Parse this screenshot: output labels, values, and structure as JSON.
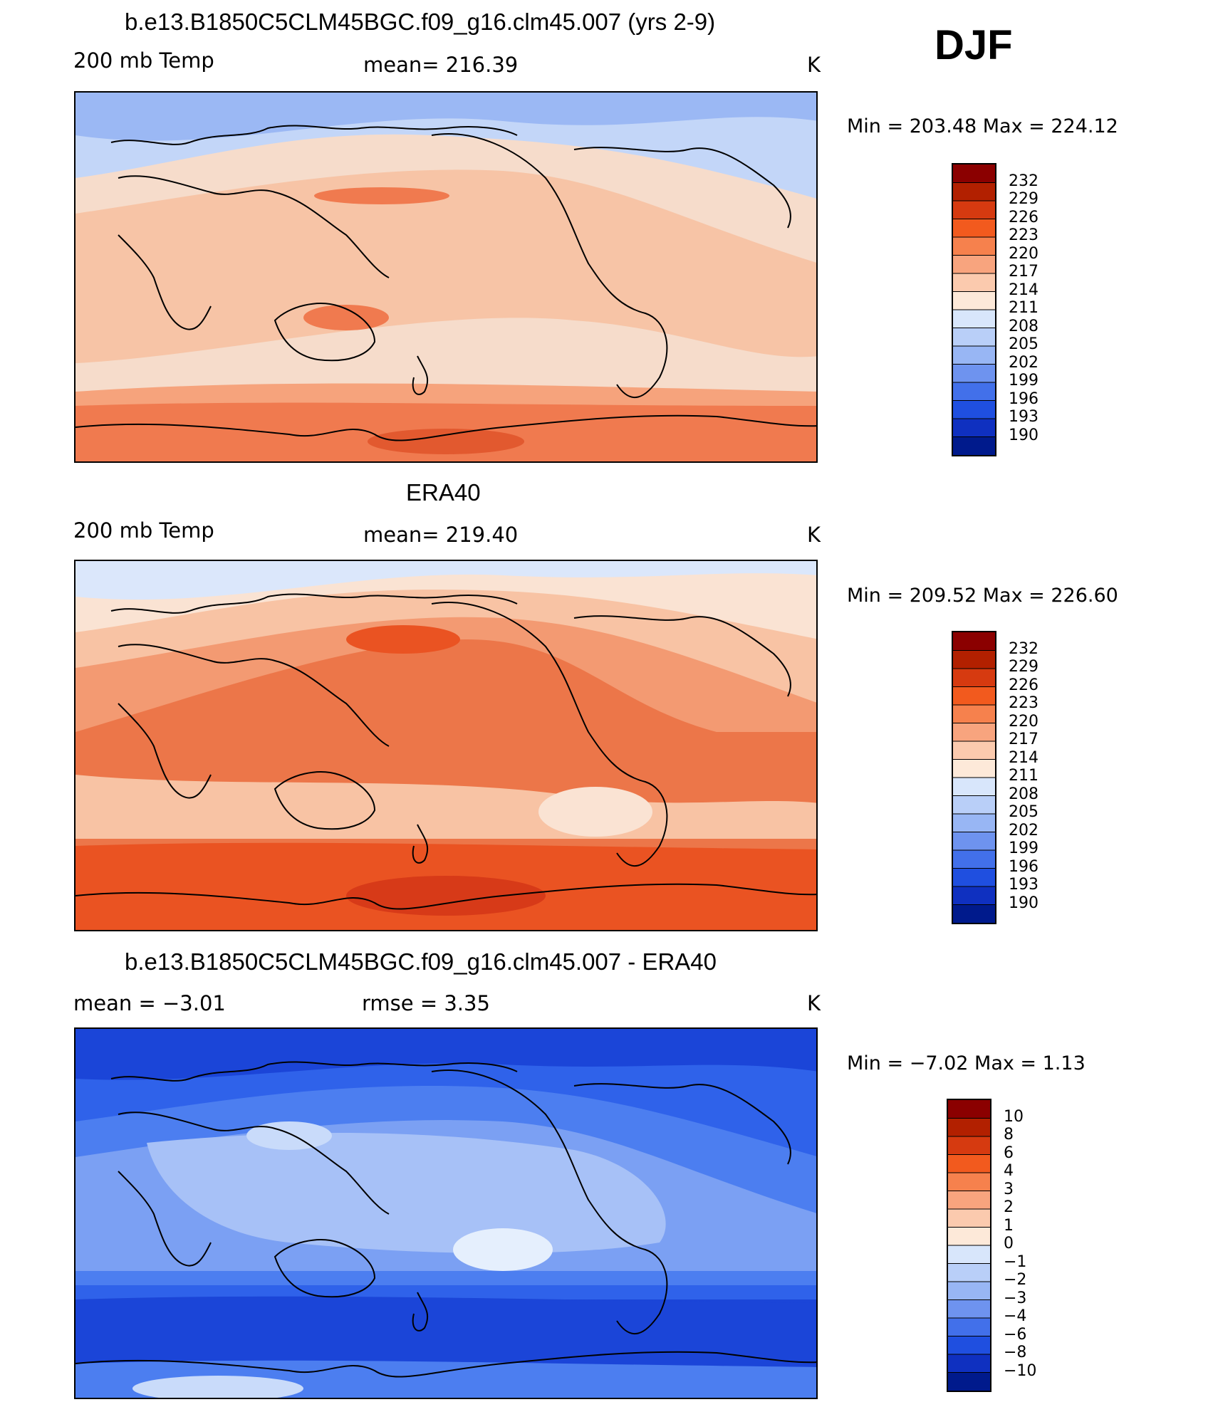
{
  "season": "DJF",
  "panels": [
    {
      "title": "b.e13.B1850C5CLM45BGC.f09_g16.clm45.007 (yrs 2-9)",
      "left_label": "200 mb Temp",
      "center_label": "mean=  216.39",
      "units": "K",
      "minmax": "Min  =  203.48  Max  =  224.12",
      "bands": [
        "#9bb8f4",
        "#c3d6f8",
        "#f6dccb",
        "#f7c4a6",
        "#f6a37c",
        "#f07a4f",
        "#e2592f"
      ],
      "levels": [
        "232",
        "229",
        "226",
        "223",
        "220",
        "217",
        "214",
        "211",
        "208",
        "205",
        "202",
        "199",
        "196",
        "193",
        "190"
      ]
    },
    {
      "title": "ERA40",
      "left_label": "200 mb Temp",
      "center_label": "mean=  219.40",
      "units": "K",
      "minmax": "Min  =  209.52  Max  =  226.60",
      "bands": [
        "#dbe7fb",
        "#fae3d3",
        "#f8c3a4",
        "#f39a72",
        "#ec7649",
        "#ea5322",
        "#d73a18"
      ],
      "levels": [
        "232",
        "229",
        "226",
        "223",
        "220",
        "217",
        "214",
        "211",
        "208",
        "205",
        "202",
        "199",
        "196",
        "193",
        "190"
      ]
    },
    {
      "title": "b.e13.B1850C5CLM45BGC.f09_g16.clm45.007 - ERA40",
      "left_label": "mean  =    −3.01",
      "center_label": "rmse  =      3.35",
      "units": "K",
      "minmax": "Min  =    −7.02  Max  =      1.13",
      "bands": [
        "#1b45d8",
        "#2f62ea",
        "#4c7ef0",
        "#7ba0f3",
        "#a7c1f7",
        "#c9dbfa",
        "#e5effd"
      ],
      "levels": [
        "10",
        "8",
        "6",
        "4",
        "3",
        "2",
        "1",
        "0",
        "−1",
        "−2",
        "−3",
        "−4",
        "−6",
        "−8",
        "−10"
      ]
    }
  ],
  "colorbar_colors": [
    "#8b0000",
    "#b22000",
    "#d63a10",
    "#f25a1e",
    "#f6814d",
    "#f8a47e",
    "#fbcaae",
    "#fde9d9",
    "#d8e6fb",
    "#b9cff8",
    "#98b6f4",
    "#6e93ef",
    "#4270ea",
    "#1f4fe0",
    "#0f30c0",
    "#001a8c"
  ]
}
